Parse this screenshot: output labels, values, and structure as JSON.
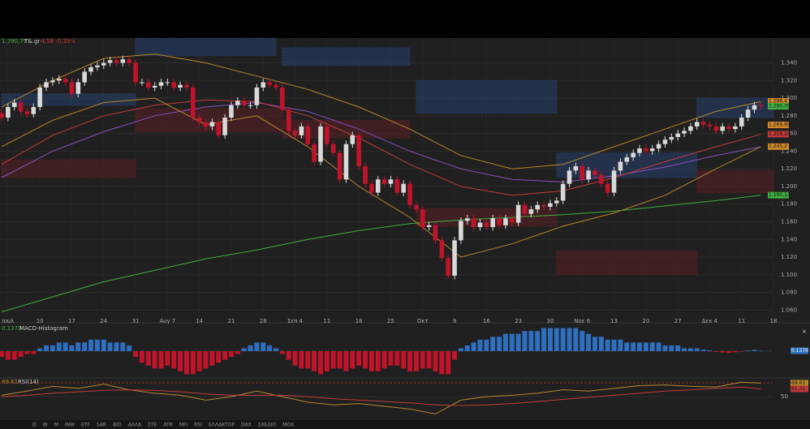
{
  "header": {
    "price": "1.290,79",
    "ticker": "Τ&.gr",
    "change": "-4,58 -0,35%"
  },
  "toolbar": [
    "D",
    "W",
    "M",
    "INW",
    "ETF",
    "SAR",
    "BIO",
    "ΑΛΛΑ",
    "ΣΤΕ",
    "ATR",
    "MFI",
    "RSI",
    "ΕΛΛΑΚΤΟΡ",
    "DAX",
    "ΣΧΕΔΙΟ",
    "ΜΟΧ"
  ],
  "chart_data": [
    {
      "type": "candlestick",
      "categories": [
        null,
        "Ιουλ",
        null,
        null,
        null,
        null,
        "10",
        null,
        null,
        null,
        null,
        "17",
        null,
        null,
        null,
        null,
        "24",
        null,
        null,
        null,
        null,
        "31",
        null,
        null,
        null,
        null,
        "Αυγ 7",
        null,
        null,
        null,
        null,
        "14",
        null,
        null,
        null,
        null,
        "21",
        null,
        null,
        null,
        null,
        "28",
        null,
        null,
        null,
        null,
        "Σεπ 4",
        null,
        null,
        null,
        null,
        "11",
        null,
        null,
        null,
        null,
        "18",
        null,
        null,
        null,
        null,
        "25",
        null,
        null,
        null,
        null,
        "Οκτ",
        null,
        null,
        null,
        null,
        "9",
        null,
        null,
        null,
        null,
        "16",
        null,
        null,
        null,
        null,
        "23",
        null,
        null,
        null,
        null,
        "30",
        null,
        null,
        null,
        null,
        "Νοε 6",
        null,
        null,
        null,
        null,
        "13",
        null,
        null,
        null,
        null,
        "20",
        null,
        null,
        null,
        null,
        "27",
        null,
        null,
        null,
        null,
        "Δεκ 4",
        null,
        null,
        null,
        null,
        "11",
        null,
        null,
        null,
        null,
        "18"
      ],
      "open": [
        1283,
        1278,
        1290,
        1295,
        1285,
        1282,
        1290,
        1312,
        1318,
        1320,
        1322,
        1318,
        1305,
        1318,
        1330,
        1335,
        1337,
        1340,
        1343,
        1340,
        1344,
        1340,
        1318,
        1318,
        1312,
        1314,
        1318,
        1318,
        1312,
        1315,
        1312,
        1278,
        1273,
        1268,
        1273,
        1258,
        1278,
        1292,
        1297,
        1292,
        1292,
        1312,
        1318,
        1315,
        1312,
        1287,
        1263,
        1258,
        1268,
        1248,
        1228,
        1268,
        1248,
        1238,
        1208,
        1248,
        1258,
        1223,
        1203,
        1193,
        1208,
        1203,
        1208,
        1193,
        1203,
        1179,
        1174,
        1154,
        1156,
        1139,
        1119,
        1099,
        1139,
        1161,
        1164,
        1154,
        1159,
        1154,
        1164,
        1156,
        1164,
        1159,
        1179,
        1169,
        1174,
        1179,
        1177,
        1181,
        1184,
        1203,
        1218,
        1223,
        1208,
        1218,
        1213,
        1203,
        1193,
        1218,
        1228,
        1233,
        1238,
        1243,
        1240,
        1243,
        1248,
        1253,
        1256,
        1260,
        1263,
        1268,
        1273,
        1270,
        1268,
        1263,
        1268,
        1265,
        1268,
        1278,
        1287,
        1292,
        null,
        null
      ],
      "high": [
        1287,
        1294,
        1299,
        1299,
        1289,
        1294,
        1316,
        1322,
        1324,
        1326,
        1326,
        1322,
        1322,
        1334,
        1339,
        1341,
        1344,
        1347,
        1347,
        1348,
        1348,
        1344,
        1322,
        1322,
        1318,
        1322,
        1322,
        1322,
        1319,
        1319,
        1316,
        1282,
        1277,
        1277,
        1277,
        1282,
        1296,
        1301,
        1301,
        1296,
        1316,
        1322,
        1322,
        1319,
        1316,
        1291,
        1267,
        1272,
        1272,
        1252,
        1272,
        1272,
        1252,
        1242,
        1252,
        1262,
        1262,
        1227,
        1207,
        1212,
        1212,
        1212,
        1212,
        1207,
        1207,
        1183,
        1178,
        1160,
        1160,
        1143,
        1123,
        1143,
        1165,
        1168,
        1168,
        1163,
        1163,
        1168,
        1168,
        1168,
        1168,
        1183,
        1183,
        1178,
        1183,
        1183,
        1185,
        1188,
        1207,
        1222,
        1227,
        1227,
        1222,
        1222,
        1217,
        1207,
        1222,
        1232,
        1237,
        1242,
        1247,
        1247,
        1247,
        1252,
        1257,
        1260,
        1264,
        1267,
        1272,
        1277,
        1277,
        1274,
        1272,
        1272,
        1272,
        1272,
        1282,
        1291,
        1296,
        1296,
        null,
        null
      ],
      "low": [
        1274,
        1274,
        1286,
        1281,
        1278,
        1278,
        1286,
        1308,
        1314,
        1316,
        1314,
        1301,
        1301,
        1314,
        1326,
        1331,
        1333,
        1336,
        1336,
        1336,
        1336,
        1314,
        1314,
        1308,
        1308,
        1310,
        1314,
        1308,
        1308,
        1308,
        1274,
        1269,
        1264,
        1264,
        1254,
        1254,
        1274,
        1288,
        1288,
        1288,
        1288,
        1308,
        1311,
        1308,
        1283,
        1259,
        1254,
        1254,
        1244,
        1224,
        1224,
        1244,
        1234,
        1204,
        1204,
        1244,
        1219,
        1199,
        1189,
        1189,
        1199,
        1199,
        1189,
        1189,
        1175,
        1170,
        1150,
        1150,
        1135,
        1115,
        1095,
        1095,
        1135,
        1157,
        1150,
        1150,
        1150,
        1150,
        1152,
        1152,
        1155,
        1155,
        1165,
        1165,
        1170,
        1173,
        1173,
        1177,
        1180,
        1199,
        1214,
        1204,
        1204,
        1209,
        1199,
        1189,
        1189,
        1214,
        1224,
        1229,
        1234,
        1236,
        1236,
        1239,
        1244,
        1249,
        1252,
        1256,
        1259,
        1264,
        1266,
        1264,
        1259,
        1259,
        1261,
        1261,
        1264,
        1274,
        1283,
        1287,
        null,
        null
      ],
      "close": [
        1278,
        1290,
        1295,
        1285,
        1282,
        1290,
        1312,
        1318,
        1320,
        1322,
        1318,
        1305,
        1318,
        1330,
        1335,
        1337,
        1340,
        1343,
        1340,
        1344,
        1340,
        1318,
        1318,
        1312,
        1314,
        1318,
        1318,
        1312,
        1315,
        1312,
        1278,
        1273,
        1268,
        1273,
        1258,
        1278,
        1292,
        1297,
        1292,
        1292,
        1312,
        1318,
        1315,
        1312,
        1287,
        1263,
        1258,
        1268,
        1248,
        1228,
        1268,
        1248,
        1238,
        1208,
        1248,
        1258,
        1223,
        1203,
        1193,
        1208,
        1203,
        1208,
        1193,
        1203,
        1179,
        1174,
        1154,
        1156,
        1139,
        1119,
        1099,
        1139,
        1161,
        1164,
        1154,
        1159,
        1154,
        1164,
        1156,
        1164,
        1159,
        1179,
        1169,
        1174,
        1179,
        1177,
        1181,
        1184,
        1203,
        1218,
        1223,
        1208,
        1218,
        1213,
        1203,
        1193,
        1218,
        1228,
        1233,
        1238,
        1243,
        1240,
        1243,
        1248,
        1253,
        1256,
        1260,
        1263,
        1268,
        1273,
        1270,
        1268,
        1263,
        1268,
        1265,
        1268,
        1278,
        1287,
        1292,
        1290.79,
        null,
        null
      ],
      "up_color": "#d9d9d9",
      "down_color": "#c0142a",
      "ylim": [
        1053,
        1368
      ],
      "yticks": [
        {
          "value": 1060,
          "label": "1.060"
        },
        {
          "value": 1080,
          "label": "1.080"
        },
        {
          "value": 1100,
          "label": "1.100"
        },
        {
          "value": 1120,
          "label": "1.120"
        },
        {
          "value": 1140,
          "label": "1.140"
        },
        {
          "value": 1160,
          "label": "1.160"
        },
        {
          "value": 1180,
          "label": "1.180"
        },
        {
          "value": 1200,
          "label": "1.200"
        },
        {
          "value": 1220,
          "label": "1.220"
        },
        {
          "value": 1240,
          "label": "1.240"
        },
        {
          "value": 1260,
          "label": "1.260"
        },
        {
          "value": 1280,
          "label": "1.280"
        },
        {
          "value": 1300,
          "label": "1.300"
        },
        {
          "value": 1320,
          "label": "1.320"
        },
        {
          "value": 1340,
          "label": "1.340"
        }
      ],
      "grid": true,
      "zones": [
        {
          "x0": 0,
          "x1": 21,
          "y0": 1292,
          "y1": 1305,
          "color": "#27406e"
        },
        {
          "x0": 21,
          "x1": 43,
          "y0": 1348,
          "y1": 1368,
          "color": "#27406e"
        },
        {
          "x0": 44,
          "x1": 64,
          "y0": 1337,
          "y1": 1357,
          "color": "#27406e"
        },
        {
          "x0": 65,
          "x1": 87,
          "y0": 1283,
          "y1": 1320,
          "color": "#27406e"
        },
        {
          "x0": 87,
          "x1": 109,
          "y0": 1210,
          "y1": 1238,
          "color": "#27406e"
        },
        {
          "x0": 109,
          "x1": 121,
          "y0": 1278,
          "y1": 1300,
          "color": "#27406e"
        },
        {
          "x0": 0,
          "x1": 21,
          "y0": 1210,
          "y1": 1230,
          "color": "#5a1f24"
        },
        {
          "x0": 21,
          "x1": 44,
          "y0": 1262,
          "y1": 1288,
          "color": "#5a1f24"
        },
        {
          "x0": 44,
          "x1": 64,
          "y0": 1255,
          "y1": 1275,
          "color": "#5a1f24"
        },
        {
          "x0": 65,
          "x1": 87,
          "y0": 1155,
          "y1": 1175,
          "color": "#5a1f24"
        },
        {
          "x0": 87,
          "x1": 109,
          "y0": 1100,
          "y1": 1127,
          "color": "#5a1f24"
        },
        {
          "x0": 109,
          "x1": 121,
          "y0": 1193,
          "y1": 1218,
          "color": "#5a1f24"
        }
      ],
      "overlays": [
        {
          "color": "#3fae3f",
          "x": [
            0,
            8,
            16,
            24,
            32,
            40,
            48,
            56,
            64,
            72,
            80,
            88,
            96,
            104,
            112,
            119
          ],
          "values": [
            1058,
            1075,
            1092,
            1105,
            1118,
            1128,
            1140,
            1150,
            1158,
            1162,
            1165,
            1168,
            1172,
            1178,
            1184,
            1190
          ]
        },
        {
          "color": "#8a4fc0",
          "x": [
            0,
            8,
            16,
            24,
            32,
            40,
            48,
            56,
            64,
            72,
            80,
            88,
            96,
            104,
            112,
            119
          ],
          "values": [
            1210,
            1240,
            1262,
            1280,
            1290,
            1295,
            1285,
            1265,
            1240,
            1220,
            1208,
            1205,
            1212,
            1222,
            1235,
            1245
          ]
        },
        {
          "color": "#c23a3a",
          "x": [
            0,
            8,
            16,
            24,
            32,
            40,
            48,
            56,
            64,
            72,
            80,
            88,
            96,
            104,
            112,
            119
          ],
          "values": [
            1225,
            1258,
            1280,
            1292,
            1298,
            1296,
            1280,
            1255,
            1225,
            1200,
            1190,
            1195,
            1210,
            1228,
            1245,
            1259
          ]
        },
        {
          "color": "#b8862b",
          "x": [
            0,
            8,
            16,
            24,
            32,
            40,
            48,
            56,
            64,
            72,
            80,
            88,
            96,
            104,
            112,
            119
          ],
          "values": [
            1290,
            1320,
            1345,
            1350,
            1340,
            1325,
            1310,
            1290,
            1265,
            1235,
            1220,
            1225,
            1245,
            1265,
            1285,
            1296
          ]
        },
        {
          "color": "#b8862b",
          "x": [
            0,
            8,
            16,
            24,
            32,
            40,
            48,
            56,
            64,
            72,
            80,
            88,
            96,
            104,
            112,
            119
          ],
          "values": [
            1245,
            1275,
            1295,
            1300,
            1270,
            1280,
            1245,
            1200,
            1165,
            1120,
            1135,
            1155,
            1170,
            1190,
            1220,
            1245
          ]
        }
      ],
      "price_tags": [
        {
          "value": 1296.4,
          "label": "1.296,4",
          "color": "#d08a2a"
        },
        {
          "value": 1290.79,
          "label": "1.290,79",
          "color": "#3fae3f"
        },
        {
          "value": 1269.69,
          "label": "1.269,69",
          "color": "#d08a2a"
        },
        {
          "value": 1259.24,
          "label": "1.259,24",
          "color": "#c23a3a"
        },
        {
          "value": 1245.2,
          "label": "1.245,2",
          "color": "#d08a2a"
        },
        {
          "value": 1190.13,
          "label": "1.190,13",
          "color": "#3fae3f"
        }
      ]
    },
    {
      "type": "bar",
      "title": "MACD-Histogram",
      "last": {
        "value": 0.137,
        "label": "0.1370"
      },
      "values": [
        -2,
        -3,
        -3,
        -2,
        -1,
        -1,
        1,
        2,
        2,
        3,
        3,
        2,
        3,
        3,
        4,
        4,
        4,
        3,
        3,
        3,
        2,
        -2,
        -4,
        -5,
        -6,
        -6,
        -5,
        -6,
        -7,
        -8,
        -8,
        -7,
        -6,
        -5,
        -4,
        -3,
        -2,
        -1,
        1,
        2,
        3,
        3,
        2,
        1,
        -1,
        -3,
        -5,
        -6,
        -6,
        -7,
        -8,
        -7,
        -6,
        -6,
        -7,
        -6,
        -5,
        -6,
        -7,
        -7,
        -6,
        -5,
        -5,
        -6,
        -7,
        -7,
        -6,
        -6,
        -7,
        -8,
        -8,
        -3,
        1,
        2,
        3,
        4,
        4,
        5,
        5,
        6,
        6,
        6,
        7,
        7,
        7,
        8,
        8,
        8,
        8,
        8,
        8,
        7,
        6,
        5,
        5,
        4,
        4,
        4,
        3,
        3,
        3,
        3,
        3,
        3,
        2,
        2,
        2,
        1,
        1,
        1,
        0.5,
        0.3,
        -0.3,
        -0.5,
        -0.6,
        -0.4,
        -0.2,
        0.2,
        0.4,
        0.137,
        null,
        null
      ],
      "up_color": "#2f6fc0",
      "down_color": "#c0142a",
      "ylim": [
        -9,
        9
      ]
    },
    {
      "type": "line",
      "title": "RSI(14)",
      "last": {
        "value": 69.61,
        "label": "69.61"
      },
      "x": [
        0,
        4,
        8,
        12,
        16,
        20,
        24,
        28,
        32,
        36,
        40,
        44,
        48,
        52,
        56,
        60,
        64,
        68,
        72,
        76,
        80,
        84,
        88,
        92,
        96,
        100,
        104,
        108,
        112,
        116,
        119
      ],
      "series": [
        {
          "color": "#b8862b",
          "values": [
            52,
            58,
            65,
            62,
            68,
            60,
            55,
            52,
            45,
            50,
            58,
            50,
            42,
            38,
            40,
            36,
            32,
            25,
            45,
            50,
            52,
            55,
            60,
            58,
            62,
            66,
            67,
            65,
            64,
            71,
            69.61
          ]
        },
        {
          "color": "#c23a3a",
          "values": [
            50,
            52,
            55,
            57,
            59,
            60,
            59,
            57,
            54,
            52,
            52,
            52,
            50,
            47,
            45,
            43,
            41,
            38,
            37,
            38,
            40,
            43,
            46,
            49,
            52,
            55,
            58,
            60,
            62,
            64,
            61.31
          ]
        }
      ],
      "tags": [
        {
          "value": 69.61,
          "label": "69.61",
          "color": "#b8862b"
        },
        {
          "value": 61.31,
          "label": "61.31",
          "color": "#c23a3a"
        }
      ],
      "levels": [
        70
      ],
      "ylim": [
        16,
        76
      ],
      "yticks": [
        50
      ]
    }
  ]
}
